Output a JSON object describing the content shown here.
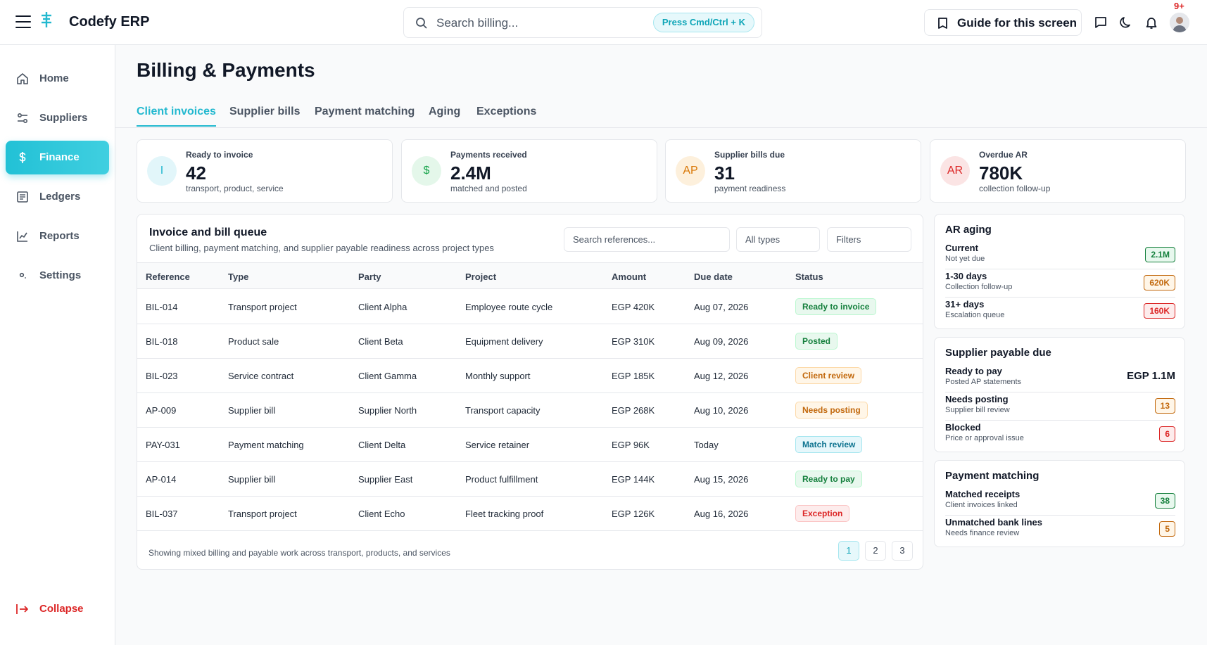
{
  "app": {
    "title": "Codefy ERP"
  },
  "search": {
    "placeholder": "Search billing...",
    "shortcut": "Press Cmd/Ctrl + K"
  },
  "header": {
    "guide_label": "Guide for this screen",
    "notification_count": "9+"
  },
  "sidebar": {
    "items": [
      {
        "label": "Home",
        "icon": "home-icon"
      },
      {
        "label": "Suppliers",
        "icon": "sliders-icon"
      },
      {
        "label": "Finance",
        "icon": "dollar-icon",
        "active": true
      },
      {
        "label": "Ledgers",
        "icon": "ledger-icon"
      },
      {
        "label": "Reports",
        "icon": "chart-line-icon"
      },
      {
        "label": "Settings",
        "icon": "settings-dot-icon"
      }
    ],
    "collapse_label": "Collapse"
  },
  "page": {
    "title": "Billing & Payments"
  },
  "tabs": [
    "Client invoices",
    "Supplier bills",
    "Payment matching",
    "Aging",
    "Exceptions"
  ],
  "kpis": [
    {
      "icon_text": "I",
      "label": "Ready to invoice",
      "value": "42",
      "sub": "transport, product, service",
      "color": "#22b8cf"
    },
    {
      "icon_text": "$",
      "label": "Payments received",
      "value": "2.4M",
      "sub": "matched and posted",
      "color": "#16a34a"
    },
    {
      "icon_text": "AP",
      "label": "Supplier bills due",
      "value": "31",
      "sub": "payment readiness",
      "color": "#d97706"
    },
    {
      "icon_text": "AR",
      "label": "Overdue AR",
      "value": "780K",
      "sub": "collection follow-up",
      "color": "#dc2626"
    }
  ],
  "queue": {
    "title": "Invoice and bill queue",
    "subtitle": "Client billing, payment matching, and supplier payable readiness across project types",
    "search_placeholder": "Search references...",
    "type_filter": "All types",
    "filters_label": "Filters",
    "columns": [
      "Reference",
      "Type",
      "Party",
      "Project",
      "Amount",
      "Due date",
      "Status"
    ],
    "rows": [
      {
        "reference": "BIL-014",
        "type": "Transport project",
        "party": "Client Alpha",
        "project": "Employee route cycle",
        "amount": "EGP 420K",
        "due": "Aug 07, 2026",
        "status": "Ready to invoice"
      },
      {
        "reference": "BIL-018",
        "type": "Product sale",
        "party": "Client Beta",
        "project": "Equipment delivery",
        "amount": "EGP 310K",
        "due": "Aug 09, 2026",
        "status": "Posted"
      },
      {
        "reference": "BIL-023",
        "type": "Service contract",
        "party": "Client Gamma",
        "project": "Monthly support",
        "amount": "EGP 185K",
        "due": "Aug 12, 2026",
        "status": "Client review"
      },
      {
        "reference": "AP-009",
        "type": "Supplier bill",
        "party": "Supplier North",
        "project": "Transport capacity",
        "amount": "EGP 268K",
        "due": "Aug 10, 2026",
        "status": "Needs posting"
      },
      {
        "reference": "PAY-031",
        "type": "Payment matching",
        "party": "Client Delta",
        "project": "Service retainer",
        "amount": "EGP 96K",
        "due": "Today",
        "status": "Match review"
      },
      {
        "reference": "AP-014",
        "type": "Supplier bill",
        "party": "Supplier East",
        "project": "Product fulfillment",
        "amount": "EGP 144K",
        "due": "Aug 15, 2026",
        "status": "Ready to pay"
      },
      {
        "reference": "BIL-037",
        "type": "Transport project",
        "party": "Client Echo",
        "project": "Fleet tracking proof",
        "amount": "EGP 126K",
        "due": "Aug 16, 2026",
        "status": "Exception"
      }
    ],
    "footer": "Showing mixed billing and payable work across transport, products, and services",
    "pages": [
      "1",
      "2",
      "3"
    ],
    "current_page": "1"
  },
  "ar_aging": {
    "title": "AR aging",
    "rows": [
      {
        "label": "Current",
        "sub": "Not yet due",
        "value": "2.1M",
        "tone": "green"
      },
      {
        "label": "1-30 days",
        "sub": "Collection follow-up",
        "value": "620K",
        "tone": "orange"
      },
      {
        "label": "31+ days",
        "sub": "Escalation queue",
        "value": "160K",
        "tone": "red"
      }
    ]
  },
  "supplier_payable": {
    "title": "Supplier payable due",
    "rows": [
      {
        "label": "Ready to pay",
        "sub": "Posted AP statements",
        "value": "EGP 1.1M",
        "tone": "plain"
      },
      {
        "label": "Needs posting",
        "sub": "Supplier bill review",
        "value": "13",
        "tone": "orange"
      },
      {
        "label": "Blocked",
        "sub": "Price or approval issue",
        "value": "6",
        "tone": "red"
      }
    ]
  },
  "payment_matching": {
    "title": "Payment matching",
    "rows": [
      {
        "label": "Matched receipts",
        "sub": "Client invoices linked",
        "value": "38",
        "tone": "green"
      },
      {
        "label": "Unmatched bank lines",
        "sub": "Needs finance review",
        "value": "5",
        "tone": "orange"
      }
    ]
  },
  "colors": {
    "accent": "#22b8cf",
    "danger": "#dc2626",
    "success": "#16a34a",
    "warning": "#d97706"
  }
}
